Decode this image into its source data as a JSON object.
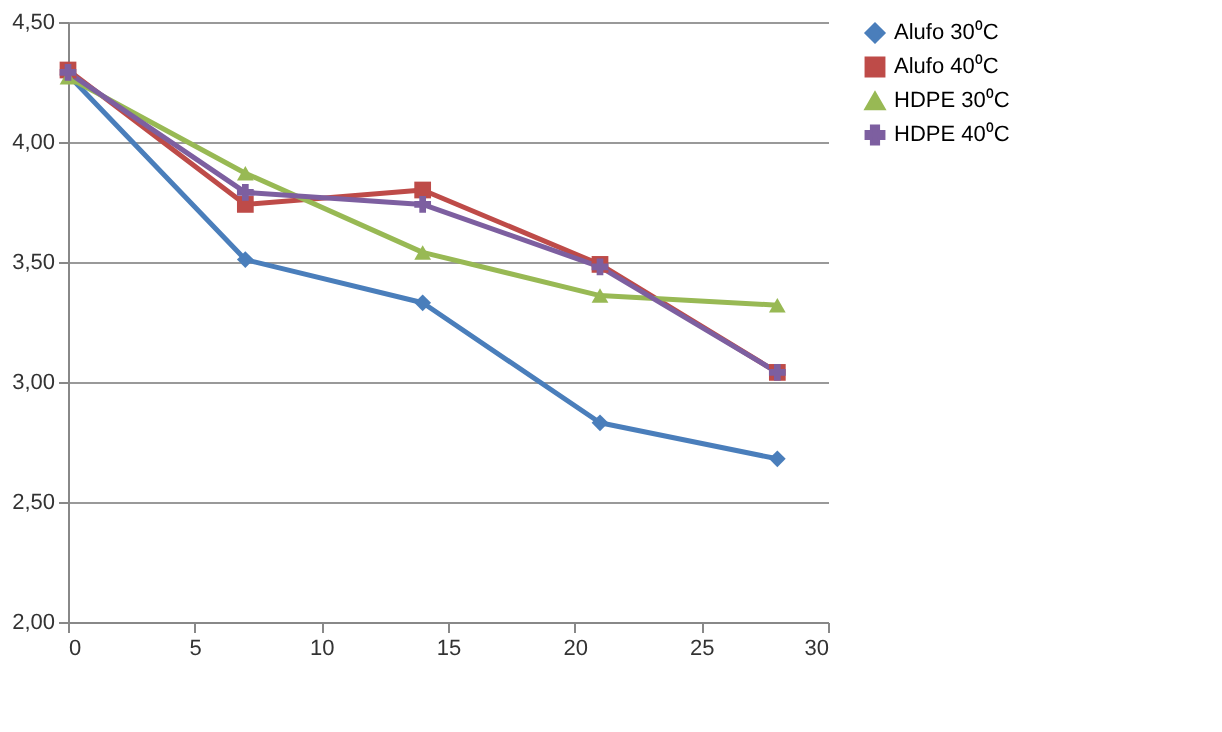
{
  "chart_data": {
    "type": "line",
    "x": [
      0,
      7,
      14,
      21,
      28
    ],
    "series": [
      {
        "name": "Alufo 30⁰C",
        "color": "#4a7ebb",
        "marker": "diamond",
        "values": [
          4.28,
          3.51,
          3.33,
          2.83,
          2.68
        ]
      },
      {
        "name": "Alufo 40⁰C",
        "color": "#be4b48",
        "marker": "square",
        "values": [
          4.3,
          3.74,
          3.8,
          3.49,
          3.04
        ]
      },
      {
        "name": "HDPE 30⁰C",
        "color": "#98b954",
        "marker": "triangle",
        "values": [
          4.27,
          3.87,
          3.54,
          3.36,
          3.32
        ]
      },
      {
        "name": "HDPE 40⁰C",
        "color": "#7d5fa0",
        "marker": "cross",
        "values": [
          4.29,
          3.79,
          3.74,
          3.48,
          3.04
        ]
      }
    ],
    "xlim": [
      0,
      30
    ],
    "xticks": [
      0,
      5,
      10,
      15,
      20,
      25,
      30
    ],
    "ylim": [
      2.0,
      4.5
    ],
    "yticks": [
      {
        "value": 2.0,
        "label": "2,00"
      },
      {
        "value": 2.5,
        "label": "2,50"
      },
      {
        "value": 3.0,
        "label": "3,00"
      },
      {
        "value": 3.5,
        "label": "3,50"
      },
      {
        "value": 4.0,
        "label": "4,00"
      },
      {
        "value": 4.5,
        "label": "4,50"
      }
    ],
    "grid": "y",
    "legend": "right",
    "line_style": "solid"
  }
}
